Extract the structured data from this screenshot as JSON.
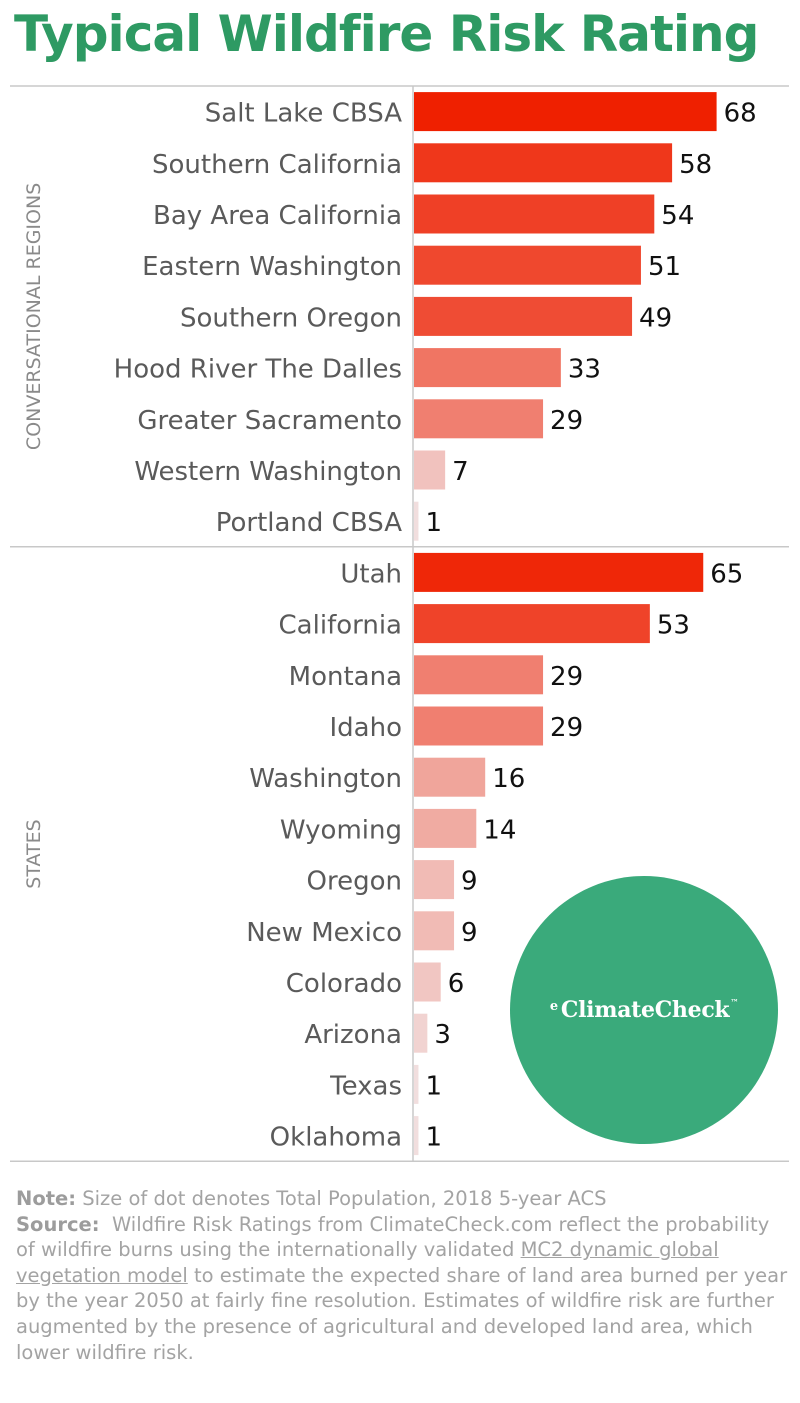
{
  "title": "Typical Wildfire Risk Rating",
  "colors": {
    "title": "#2e9a63",
    "bar_high": "#ef2000",
    "bar_low": "#f1dede",
    "logo_bg": "#3aaa7b"
  },
  "chart_data": {
    "type": "bar",
    "orientation": "horizontal",
    "xlim": [
      0,
      100
    ],
    "grid": false,
    "groups": [
      {
        "name": "CONVERSATIONAL REGIONS",
        "categories": [
          "Salt Lake CBSA",
          "Southern California",
          "Bay Area California",
          "Eastern Washington",
          "Southern Oregon",
          "Hood River The Dalles",
          "Greater Sacramento",
          "Western Washington",
          "Portland CBSA"
        ],
        "values": [
          68,
          58,
          54,
          51,
          49,
          33,
          29,
          7,
          1
        ]
      },
      {
        "name": "STATES",
        "categories": [
          "Utah",
          "California",
          "Montana",
          "Idaho",
          "Washington",
          "Wyoming",
          "Oregon",
          "New Mexico",
          "Colorado",
          "Arizona",
          "Texas",
          "Oklahoma"
        ],
        "values": [
          65,
          53,
          29,
          29,
          16,
          14,
          9,
          9,
          6,
          3,
          1,
          1
        ]
      }
    ]
  },
  "note": {
    "note_label": "Note:",
    "note_text": "Size of dot denotes Total Population, 2018 5-year ACS",
    "source_label": "Source:",
    "source_text_1": "Wildfire Risk Ratings from ClimateCheck.com reflect the probability of wildfire burns using the internationally validated",
    "source_link": "MC2 dynamic global vegetation model",
    "source_text_2": "to estimate the expected share of land area burned per year by the year 2050 at fairly fine resolution. Estimates of wildfire risk are further augmented by the presence of agricultural and developed land area, which lower wildfire risk."
  },
  "logo": {
    "name": "ClimateCheck",
    "mark": "e",
    "tm": "™"
  }
}
